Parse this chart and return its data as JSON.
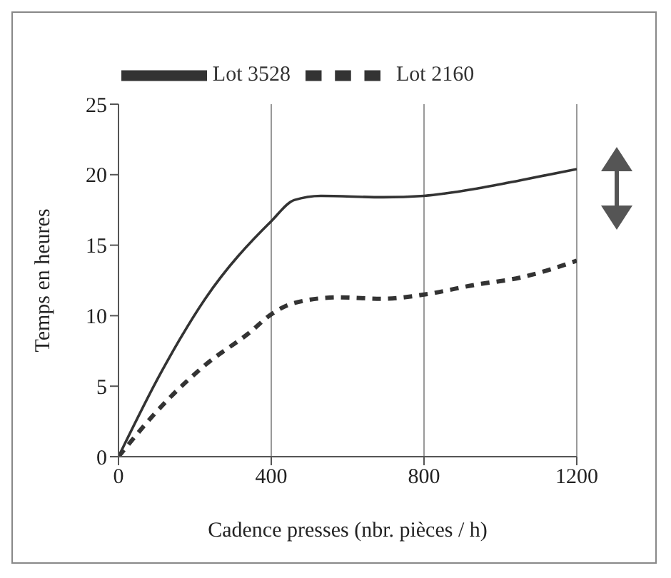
{
  "chart_data": {
    "type": "line",
    "xlabel": "Cadence presses (nbr. pièces / h)",
    "ylabel": "Temps en heures",
    "xlim": [
      0,
      1200
    ],
    "xticks": [
      0,
      400,
      800,
      1200
    ],
    "ylim": [
      0,
      25
    ],
    "yticks": [
      0,
      5,
      10,
      15,
      20,
      25
    ],
    "grid": "x",
    "legend": "top",
    "series": [
      {
        "name": "Lot 3528",
        "color": "#333333",
        "line_style": "solid",
        "x": [
          0,
          110,
          227,
          400,
          460,
          530,
          693,
          800,
          936,
          1052,
          1200
        ],
        "values": [
          0,
          5.9,
          11.2,
          16.7,
          18.2,
          18.5,
          18.4,
          18.5,
          19,
          19.6,
          20.4
        ]
      },
      {
        "name": "Lot 2160",
        "color": "#333333",
        "line_style": "dashed",
        "x": [
          0,
          110,
          227,
          343,
          400,
          460,
          576,
          693,
          800,
          936,
          1052,
          1200
        ],
        "values": [
          0,
          3.5,
          6.5,
          8.8,
          10.1,
          10.9,
          11.3,
          11.2,
          11.5,
          12.2,
          12.7,
          13.9
        ]
      }
    ]
  }
}
